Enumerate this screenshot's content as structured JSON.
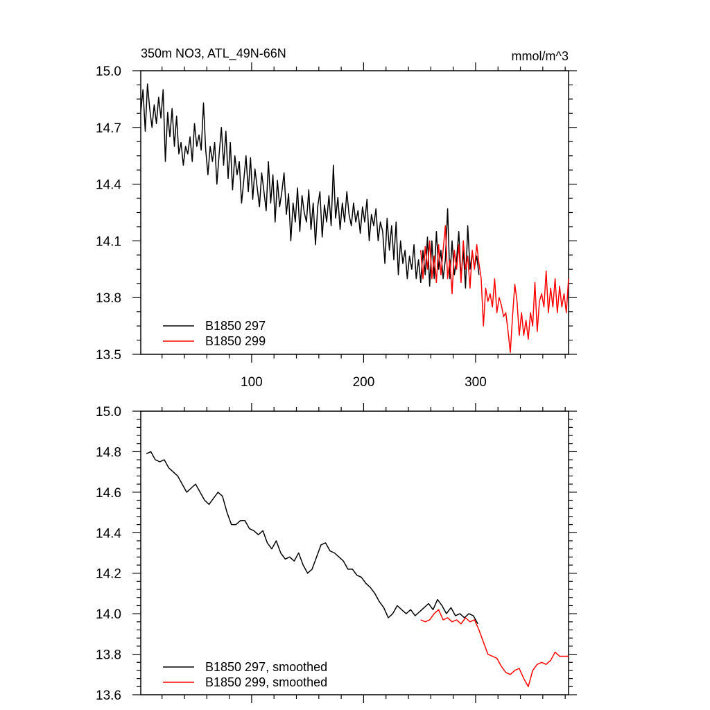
{
  "chart_data": [
    {
      "type": "line",
      "title": "350m NO3, ATL_49N-66N",
      "units": "mmol/m^3",
      "xlabel": "",
      "ylabel": "",
      "xlim": [
        1,
        383
      ],
      "ylim": [
        13.5,
        15.0
      ],
      "yticks": [
        "15.0",
        "14.7",
        "14.4",
        "14.1",
        "13.8",
        "13.5"
      ],
      "xticks": [
        "100",
        "200",
        "300"
      ],
      "grid": false,
      "legend_position": "bottom-left",
      "series": [
        {
          "name": "B1850 297",
          "color": "#000000",
          "x": [
            1,
            3,
            5,
            7,
            9,
            11,
            13,
            15,
            17,
            19,
            21,
            23,
            25,
            27,
            29,
            31,
            33,
            35,
            37,
            39,
            41,
            43,
            45,
            47,
            49,
            51,
            53,
            55,
            57,
            59,
            61,
            63,
            65,
            67,
            69,
            71,
            73,
            75,
            77,
            79,
            81,
            83,
            85,
            87,
            89,
            91,
            93,
            95,
            97,
            99,
            101,
            103,
            105,
            107,
            109,
            111,
            113,
            115,
            117,
            119,
            121,
            123,
            125,
            127,
            129,
            131,
            133,
            135,
            137,
            139,
            141,
            143,
            145,
            147,
            149,
            151,
            153,
            155,
            157,
            159,
            161,
            163,
            165,
            167,
            169,
            171,
            173,
            175,
            177,
            179,
            181,
            183,
            185,
            187,
            189,
            191,
            193,
            195,
            197,
            199,
            201,
            203,
            205,
            207,
            209,
            211,
            213,
            215,
            217,
            219,
            221,
            223,
            225,
            227,
            229,
            231,
            233,
            235,
            237,
            239,
            241,
            243,
            245,
            247,
            249,
            251,
            253,
            255,
            257,
            259,
            261,
            263,
            265,
            267,
            269,
            271,
            273,
            275,
            277,
            279,
            281,
            283,
            285,
            287,
            289,
            291,
            293,
            295,
            297,
            299,
            301,
            303
          ],
          "y": [
            14.78,
            14.9,
            14.68,
            14.93,
            14.8,
            14.7,
            14.82,
            14.72,
            14.86,
            14.75,
            14.9,
            14.52,
            14.78,
            14.65,
            14.8,
            14.6,
            14.76,
            14.56,
            14.62,
            14.5,
            14.6,
            14.56,
            14.65,
            14.52,
            14.72,
            14.6,
            14.66,
            14.58,
            14.83,
            14.58,
            14.45,
            14.6,
            14.52,
            14.62,
            14.4,
            14.56,
            14.7,
            14.5,
            14.68,
            14.43,
            14.62,
            14.37,
            14.55,
            14.45,
            14.52,
            14.3,
            14.42,
            14.55,
            14.36,
            14.54,
            14.32,
            14.48,
            14.38,
            14.28,
            14.46,
            14.36,
            14.26,
            14.52,
            14.3,
            14.45,
            14.2,
            14.42,
            14.28,
            14.36,
            14.46,
            14.24,
            14.35,
            14.1,
            14.3,
            14.2,
            14.38,
            14.15,
            14.34,
            14.25,
            14.2,
            14.37,
            14.16,
            14.3,
            14.08,
            14.28,
            14.36,
            14.12,
            14.29,
            14.2,
            14.34,
            14.18,
            14.5,
            14.22,
            14.33,
            14.16,
            14.3,
            14.2,
            14.36,
            14.24,
            14.18,
            14.3,
            14.2,
            14.26,
            14.14,
            14.28,
            14.2,
            14.32,
            14.1,
            14.24,
            14.18,
            14.27,
            14.1,
            14.2,
            14.15,
            13.98,
            14.22,
            14.05,
            14.18,
            14.0,
            14.2,
            13.92,
            14.1,
            13.98,
            14.05,
            13.9,
            14.02,
            13.95,
            14.08,
            13.9,
            14.0,
            13.88,
            14.05,
            13.92,
            14.12,
            13.86,
            14.1,
            13.9,
            14.15,
            13.95,
            14.05,
            13.9,
            14.0,
            14.27,
            13.9,
            14.1,
            13.92,
            14.0,
            14.15,
            13.9,
            14.05,
            13.85,
            14.18,
            13.95,
            14.04,
            13.96,
            14.02,
            13.92
          ]
        },
        {
          "name": "B1850 299",
          "color": "#ff0000",
          "x": [
            251,
            253,
            255,
            257,
            259,
            261,
            263,
            265,
            267,
            269,
            271,
            273,
            275,
            277,
            279,
            281,
            283,
            285,
            287,
            289,
            291,
            293,
            295,
            297,
            299,
            301,
            303,
            305,
            307,
            309,
            311,
            313,
            315,
            317,
            319,
            321,
            323,
            325,
            327,
            329,
            331,
            333,
            335,
            337,
            339,
            341,
            343,
            345,
            347,
            349,
            351,
            353,
            355,
            357,
            359,
            361,
            363,
            365,
            367,
            369,
            371,
            373,
            375,
            377,
            379,
            381,
            383
          ],
          "y": [
            14.05,
            13.9,
            14.07,
            13.95,
            14.1,
            13.9,
            14.02,
            13.88,
            14.08,
            13.92,
            14.05,
            14.18,
            13.9,
            14.0,
            13.82,
            14.05,
            13.95,
            14.08,
            13.88,
            14.1,
            13.95,
            14.02,
            13.85,
            14.05,
            13.95,
            14.08,
            13.98,
            13.9,
            13.65,
            13.85,
            13.78,
            13.82,
            13.75,
            13.9,
            13.72,
            13.8,
            13.76,
            13.7,
            13.72,
            13.62,
            13.51,
            13.7,
            13.87,
            13.78,
            13.6,
            13.72,
            13.6,
            13.68,
            13.58,
            13.72,
            13.65,
            13.88,
            13.62,
            13.78,
            13.82,
            13.75,
            13.94,
            13.72,
            13.85,
            13.75,
            13.9,
            13.72,
            13.86,
            13.75,
            13.82,
            13.72,
            13.9
          ]
        }
      ]
    },
    {
      "type": "line",
      "title": "",
      "xlabel": "",
      "ylabel": "",
      "xlim": [
        1,
        383
      ],
      "ylim": [
        13.6,
        15.0
      ],
      "yticks": [
        "15.0",
        "14.8",
        "14.6",
        "14.4",
        "14.2",
        "14.0",
        "13.8",
        "13.6"
      ],
      "grid": false,
      "legend_position": "bottom-left",
      "series": [
        {
          "name": "B1850 297, smoothed",
          "color": "#000000",
          "x": [
            6,
            10,
            14,
            18,
            22,
            26,
            30,
            34,
            38,
            42,
            46,
            50,
            54,
            58,
            62,
            66,
            70,
            74,
            78,
            82,
            86,
            90,
            94,
            98,
            102,
            106,
            110,
            114,
            118,
            122,
            126,
            130,
            134,
            138,
            142,
            146,
            150,
            154,
            158,
            162,
            166,
            170,
            174,
            178,
            182,
            186,
            190,
            194,
            198,
            202,
            206,
            210,
            214,
            218,
            222,
            226,
            230,
            234,
            238,
            242,
            246,
            250,
            254,
            258,
            262,
            266,
            270,
            274,
            278,
            282,
            286,
            290,
            294,
            298,
            302
          ],
          "y": [
            14.79,
            14.8,
            14.76,
            14.75,
            14.76,
            14.72,
            14.7,
            14.68,
            14.64,
            14.6,
            14.62,
            14.64,
            14.6,
            14.56,
            14.54,
            14.57,
            14.6,
            14.58,
            14.5,
            14.44,
            14.44,
            14.46,
            14.46,
            14.42,
            14.41,
            14.39,
            14.41,
            14.35,
            14.32,
            14.36,
            14.3,
            14.27,
            14.28,
            14.26,
            14.3,
            14.24,
            14.2,
            14.22,
            14.28,
            14.34,
            14.35,
            14.31,
            14.3,
            14.28,
            14.26,
            14.22,
            14.22,
            14.19,
            14.18,
            14.15,
            14.13,
            14.1,
            14.06,
            14.03,
            13.98,
            14.0,
            14.04,
            14.02,
            14.0,
            14.02,
            13.99,
            14.01,
            14.03,
            14.05,
            14.02,
            14.07,
            14.04,
            14.0,
            14.03,
            13.99,
            14.0,
            13.98,
            14.0,
            13.99,
            13.95
          ]
        },
        {
          "name": "B1850 299, smoothed",
          "color": "#ff0000",
          "x": [
            251,
            255,
            259,
            263,
            267,
            271,
            275,
            279,
            283,
            287,
            291,
            295,
            299,
            303,
            307,
            311,
            315,
            319,
            323,
            327,
            331,
            335,
            339,
            343,
            347,
            351,
            355,
            359,
            363,
            367,
            371,
            375,
            379,
            383
          ],
          "y": [
            13.97,
            13.96,
            13.97,
            14.0,
            14.02,
            13.97,
            13.98,
            13.96,
            13.97,
            13.95,
            13.98,
            13.96,
            13.97,
            13.92,
            13.86,
            13.8,
            13.79,
            13.78,
            13.74,
            13.71,
            13.7,
            13.72,
            13.73,
            13.68,
            13.64,
            13.72,
            13.75,
            13.76,
            13.75,
            13.77,
            13.81,
            13.79,
            13.79,
            13.79
          ]
        }
      ]
    }
  ]
}
